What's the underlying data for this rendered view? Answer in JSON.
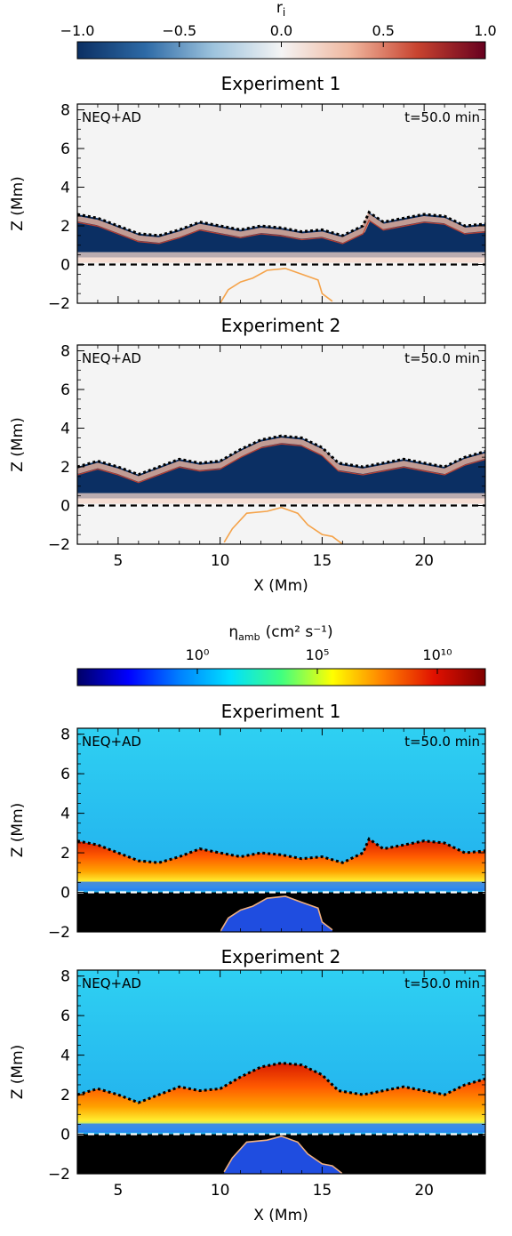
{
  "colorbar_top": {
    "label": "r",
    "label_sub": "i",
    "ticks": [
      "−1.0",
      "−0.5",
      "0.0",
      "0.5",
      "1.0"
    ],
    "tick_values": [
      -1.0,
      -0.5,
      0.0,
      0.5,
      1.0
    ],
    "range": [
      -1.0,
      1.0
    ],
    "colors": [
      "#0b2f63",
      "#2d6aa6",
      "#9dc3dd",
      "#f4f4f4",
      "#f0b8a0",
      "#c8432f",
      "#67001f"
    ]
  },
  "colorbar_bottom": {
    "label": "η",
    "label_sub": "amb",
    "label_units": "(cm² s⁻¹)",
    "ticks": [
      "10⁰",
      "10⁵",
      "10¹⁰"
    ],
    "tick_exponents": [
      0,
      5,
      10
    ],
    "range_exponent": [
      -5,
      12
    ],
    "colors": [
      "#000066",
      "#0000ff",
      "#0080ff",
      "#00e0ff",
      "#40ff80",
      "#ffff00",
      "#ff8000",
      "#e01000",
      "#800000"
    ]
  },
  "chart_data": [
    {
      "type": "heatmap",
      "title": "Experiment 1",
      "panel_text_left": "NEQ+AD",
      "panel_text_right": "t=50.0 min",
      "variable": "r_i",
      "xlim": [
        3,
        23
      ],
      "ylim": [
        -2,
        8.3
      ],
      "yticks": [
        "−2",
        "0",
        "2",
        "4",
        "6",
        "8"
      ],
      "ytick_values": [
        -2,
        0,
        2,
        4,
        6,
        8
      ],
      "ylabel": "Z (Mm)",
      "transition_region_z": [
        [
          3,
          2.6
        ],
        [
          4,
          2.4
        ],
        [
          5,
          2.0
        ],
        [
          6,
          1.6
        ],
        [
          7,
          1.5
        ],
        [
          8,
          1.8
        ],
        [
          9,
          2.2
        ],
        [
          10,
          2.0
        ],
        [
          11,
          1.8
        ],
        [
          12,
          2.0
        ],
        [
          13,
          1.9
        ],
        [
          14,
          1.7
        ],
        [
          15,
          1.8
        ],
        [
          16,
          1.5
        ],
        [
          17,
          2.0
        ],
        [
          17.3,
          2.7
        ],
        [
          18,
          2.2
        ],
        [
          19,
          2.4
        ],
        [
          20,
          2.6
        ],
        [
          21,
          2.5
        ],
        [
          22,
          2.0
        ],
        [
          23,
          2.1
        ]
      ],
      "reference_line_z": 0,
      "bubble_contour": [
        [
          10,
          -2
        ],
        [
          10.4,
          -1.3
        ],
        [
          11,
          -0.9
        ],
        [
          11.6,
          -0.7
        ],
        [
          12.3,
          -0.3
        ],
        [
          13.2,
          -0.2
        ],
        [
          14,
          -0.5
        ],
        [
          14.8,
          -0.8
        ],
        [
          15,
          -1.5
        ],
        [
          15.5,
          -1.9
        ]
      ]
    },
    {
      "type": "heatmap",
      "title": "Experiment 2",
      "panel_text_left": "NEQ+AD",
      "panel_text_right": "t=50.0 min",
      "variable": "r_i",
      "xlim": [
        3,
        23
      ],
      "ylim": [
        -2,
        8.3
      ],
      "yticks": [
        "−2",
        "0",
        "2",
        "4",
        "6",
        "8"
      ],
      "ytick_values": [
        -2,
        0,
        2,
        4,
        6,
        8
      ],
      "ylabel": "Z (Mm)",
      "xticks": [
        "5",
        "10",
        "15",
        "20"
      ],
      "xtick_values": [
        5,
        10,
        15,
        20
      ],
      "xlabel": "X (Mm)",
      "transition_region_z": [
        [
          3,
          2.0
        ],
        [
          4,
          2.3
        ],
        [
          5,
          2.0
        ],
        [
          6,
          1.6
        ],
        [
          7,
          2.0
        ],
        [
          8,
          2.4
        ],
        [
          9,
          2.2
        ],
        [
          10,
          2.3
        ],
        [
          11,
          2.9
        ],
        [
          12,
          3.4
        ],
        [
          13,
          3.6
        ],
        [
          14,
          3.5
        ],
        [
          15,
          3.0
        ],
        [
          15.8,
          2.2
        ],
        [
          17,
          2.0
        ],
        [
          18,
          2.2
        ],
        [
          19,
          2.4
        ],
        [
          20,
          2.2
        ],
        [
          21,
          2.0
        ],
        [
          22,
          2.5
        ],
        [
          23,
          2.8
        ]
      ],
      "reference_line_z": 0,
      "bubble_contour": [
        [
          10.2,
          -1.9
        ],
        [
          10.6,
          -1.2
        ],
        [
          11.3,
          -0.4
        ],
        [
          12.3,
          -0.3
        ],
        [
          13.0,
          -0.1
        ],
        [
          13.8,
          -0.4
        ],
        [
          14.3,
          -1.0
        ],
        [
          15.0,
          -1.5
        ],
        [
          15.5,
          -1.6
        ],
        [
          16,
          -2
        ]
      ]
    },
    {
      "type": "heatmap",
      "title": "Experiment 1",
      "panel_text_left": "NEQ+AD",
      "panel_text_right": "t=50.0 min",
      "variable": "eta_amb",
      "xlim": [
        3,
        23
      ],
      "ylim": [
        -2,
        8.3
      ],
      "yticks": [
        "−2",
        "0",
        "2",
        "4",
        "6",
        "8"
      ],
      "ytick_values": [
        -2,
        0,
        2,
        4,
        6,
        8
      ],
      "ylabel": "Z (Mm)",
      "transition_region_z": [
        [
          3,
          2.6
        ],
        [
          4,
          2.4
        ],
        [
          5,
          2.0
        ],
        [
          6,
          1.6
        ],
        [
          7,
          1.5
        ],
        [
          8,
          1.8
        ],
        [
          9,
          2.2
        ],
        [
          10,
          2.0
        ],
        [
          11,
          1.8
        ],
        [
          12,
          2.0
        ],
        [
          13,
          1.9
        ],
        [
          14,
          1.7
        ],
        [
          15,
          1.8
        ],
        [
          16,
          1.5
        ],
        [
          17,
          2.0
        ],
        [
          17.3,
          2.7
        ],
        [
          18,
          2.2
        ],
        [
          19,
          2.4
        ],
        [
          20,
          2.6
        ],
        [
          21,
          2.5
        ],
        [
          22,
          2.0
        ],
        [
          23,
          2.1
        ]
      ],
      "reference_line_z": 0,
      "bubble_contour": [
        [
          10,
          -2
        ],
        [
          10.4,
          -1.3
        ],
        [
          11,
          -0.9
        ],
        [
          11.6,
          -0.7
        ],
        [
          12.3,
          -0.3
        ],
        [
          13.2,
          -0.2
        ],
        [
          14,
          -0.5
        ],
        [
          14.8,
          -0.8
        ],
        [
          15,
          -1.5
        ],
        [
          15.5,
          -1.9
        ]
      ]
    },
    {
      "type": "heatmap",
      "title": "Experiment 2",
      "panel_text_left": "NEQ+AD",
      "panel_text_right": "t=50.0 min",
      "variable": "eta_amb",
      "xlim": [
        3,
        23
      ],
      "ylim": [
        -2,
        8.3
      ],
      "yticks": [
        "−2",
        "0",
        "2",
        "4",
        "6",
        "8"
      ],
      "ytick_values": [
        -2,
        0,
        2,
        4,
        6,
        8
      ],
      "ylabel": "Z (Mm)",
      "xticks": [
        "5",
        "10",
        "15",
        "20"
      ],
      "xtick_values": [
        5,
        10,
        15,
        20
      ],
      "xlabel": "X (Mm)",
      "transition_region_z": [
        [
          3,
          2.0
        ],
        [
          4,
          2.3
        ],
        [
          5,
          2.0
        ],
        [
          6,
          1.6
        ],
        [
          7,
          2.0
        ],
        [
          8,
          2.4
        ],
        [
          9,
          2.2
        ],
        [
          10,
          2.3
        ],
        [
          11,
          2.9
        ],
        [
          12,
          3.4
        ],
        [
          13,
          3.6
        ],
        [
          14,
          3.5
        ],
        [
          15,
          3.0
        ],
        [
          15.8,
          2.2
        ],
        [
          17,
          2.0
        ],
        [
          18,
          2.2
        ],
        [
          19,
          2.4
        ],
        [
          20,
          2.2
        ],
        [
          21,
          2.0
        ],
        [
          22,
          2.5
        ],
        [
          23,
          2.8
        ]
      ],
      "reference_line_z": 0,
      "bubble_contour": [
        [
          10.2,
          -1.9
        ],
        [
          10.6,
          -1.2
        ],
        [
          11.3,
          -0.4
        ],
        [
          12.3,
          -0.3
        ],
        [
          13.0,
          -0.1
        ],
        [
          13.8,
          -0.4
        ],
        [
          14.3,
          -1.0
        ],
        [
          15.0,
          -1.5
        ],
        [
          15.5,
          -1.6
        ],
        [
          16,
          -2
        ]
      ]
    }
  ]
}
